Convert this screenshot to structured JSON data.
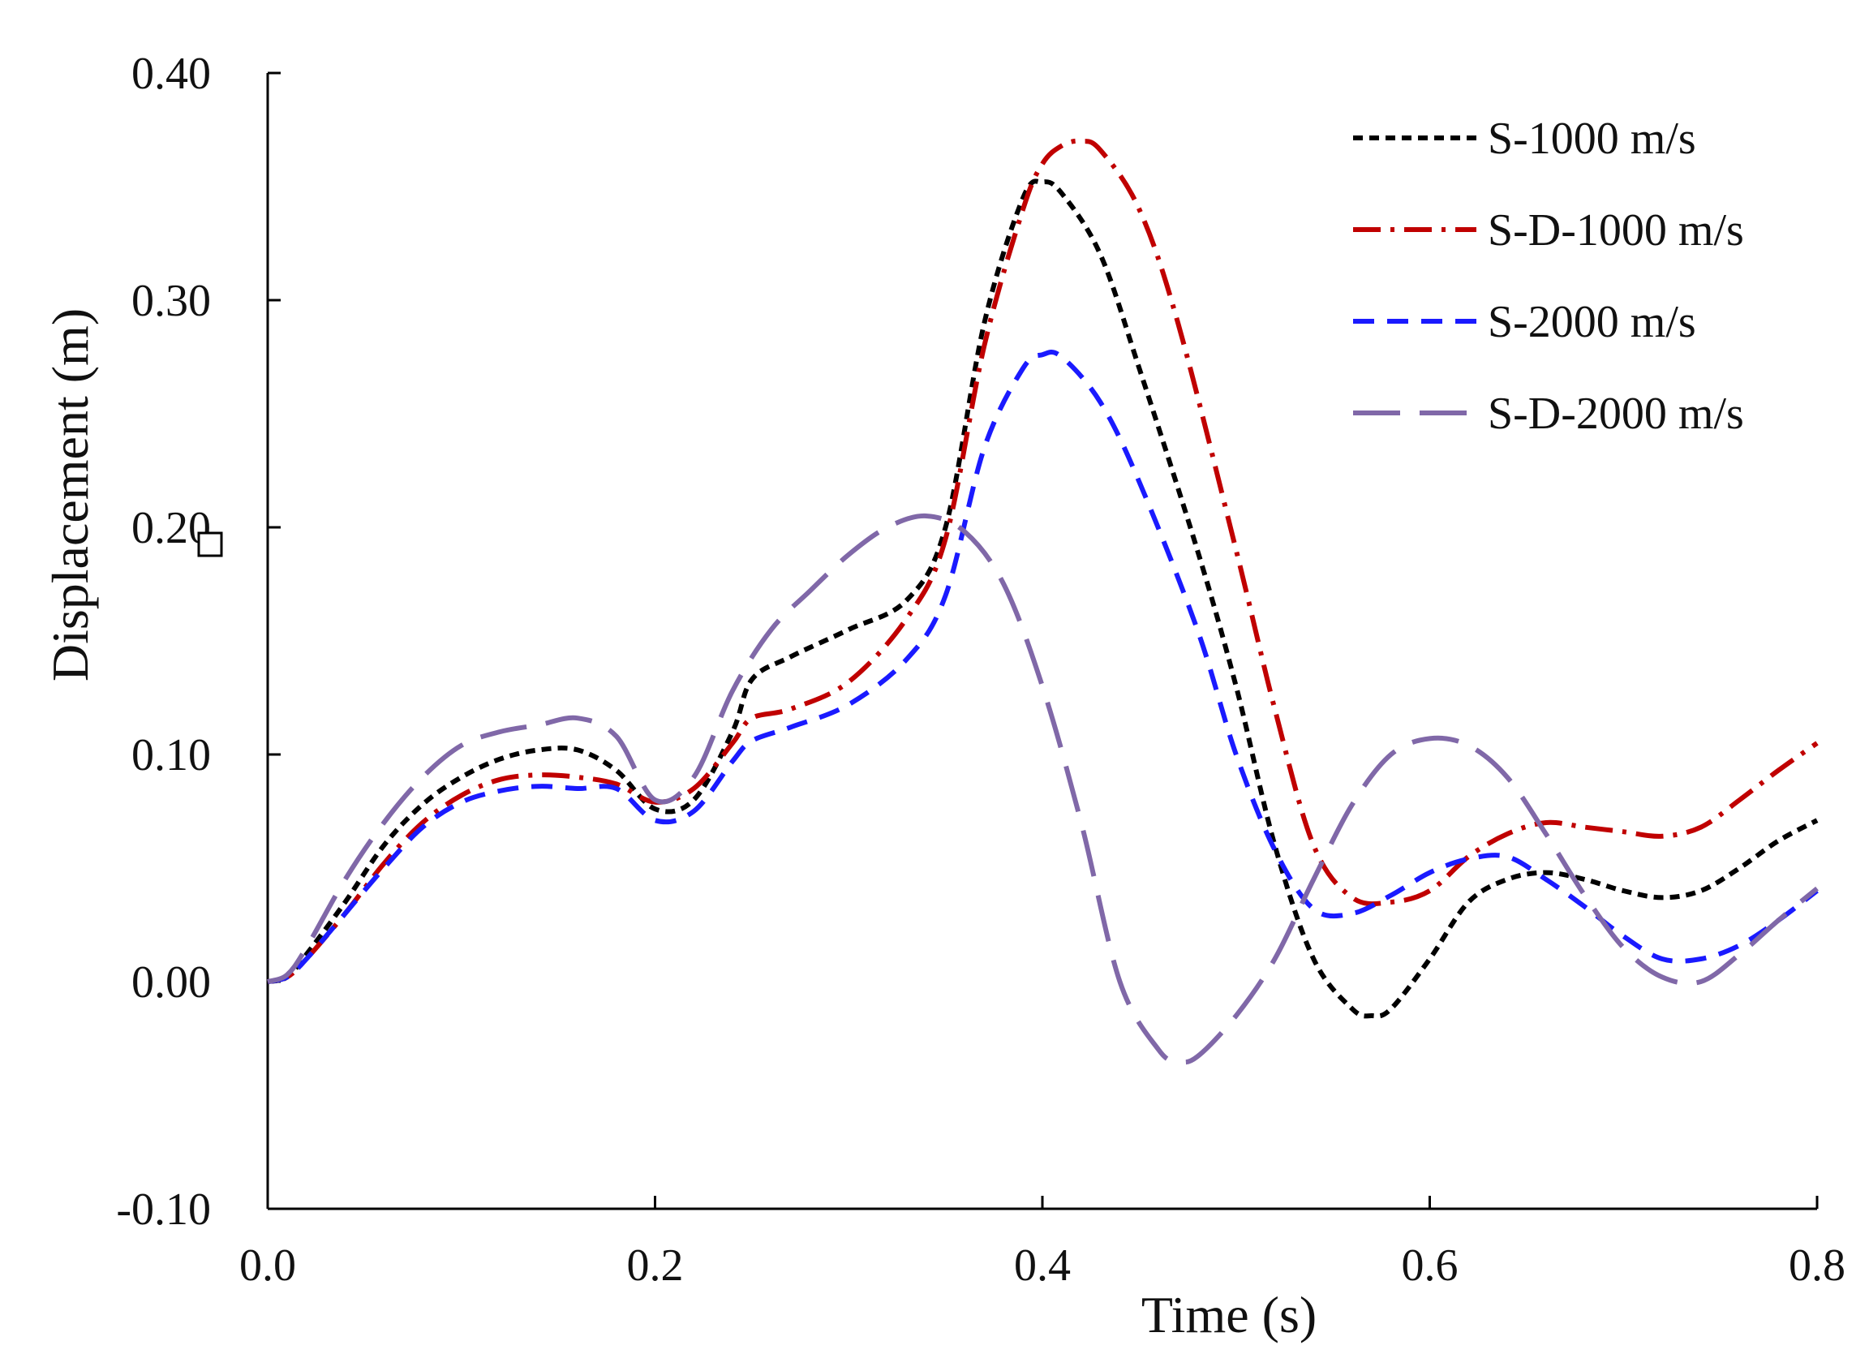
{
  "chart_data": {
    "type": "line",
    "title": "",
    "xlabel": "Time (s)",
    "ylabel": "Displacement (m)",
    "xlim": [
      0.0,
      0.8
    ],
    "ylim": [
      -0.1,
      0.4
    ],
    "xticks": [
      0.0,
      0.2,
      0.4,
      0.6,
      0.8
    ],
    "xtick_labels": [
      "0.0",
      "0.2",
      "0.4",
      "0.6",
      "0.8"
    ],
    "yticks": [
      -0.1,
      0.0,
      0.1,
      0.2,
      0.3,
      0.4
    ],
    "ytick_labels": [
      "-0.10",
      "0.00",
      "0.10",
      "0.20",
      "0.30",
      "0.40"
    ],
    "grid": false,
    "legend_position": "top-right",
    "series": [
      {
        "name": "S-1000 m/s",
        "color": "#000000",
        "dash": "short-dash",
        "x": [
          0.0,
          0.01,
          0.02,
          0.04,
          0.06,
          0.08,
          0.1,
          0.12,
          0.14,
          0.16,
          0.18,
          0.2,
          0.22,
          0.24,
          0.25,
          0.27,
          0.3,
          0.33,
          0.35,
          0.37,
          0.39,
          0.4,
          0.41,
          0.43,
          0.45,
          0.48,
          0.5,
          0.52,
          0.54,
          0.56,
          0.57,
          0.58,
          0.6,
          0.62,
          0.64,
          0.66,
          0.68,
          0.7,
          0.72,
          0.74,
          0.76,
          0.78,
          0.8
        ],
        "y": [
          0.0,
          0.002,
          0.012,
          0.035,
          0.06,
          0.078,
          0.09,
          0.098,
          0.102,
          0.102,
          0.093,
          0.076,
          0.08,
          0.11,
          0.133,
          0.143,
          0.155,
          0.168,
          0.2,
          0.29,
          0.345,
          0.352,
          0.347,
          0.32,
          0.27,
          0.19,
          0.13,
          0.06,
          0.01,
          -0.012,
          -0.015,
          -0.012,
          0.01,
          0.035,
          0.045,
          0.048,
          0.045,
          0.04,
          0.037,
          0.04,
          0.05,
          0.062,
          0.071
        ]
      },
      {
        "name": "S-D-1000 m/s",
        "color": "#c00000",
        "dash": "dash-dot",
        "x": [
          0.0,
          0.01,
          0.02,
          0.04,
          0.06,
          0.08,
          0.1,
          0.12,
          0.14,
          0.16,
          0.18,
          0.2,
          0.22,
          0.24,
          0.25,
          0.27,
          0.3,
          0.33,
          0.35,
          0.37,
          0.39,
          0.4,
          0.41,
          0.42,
          0.43,
          0.45,
          0.47,
          0.5,
          0.52,
          0.54,
          0.56,
          0.58,
          0.6,
          0.62,
          0.64,
          0.66,
          0.68,
          0.7,
          0.72,
          0.74,
          0.76,
          0.78,
          0.8
        ],
        "y": [
          0.0,
          0.002,
          0.01,
          0.03,
          0.052,
          0.07,
          0.082,
          0.089,
          0.091,
          0.09,
          0.087,
          0.079,
          0.085,
          0.105,
          0.116,
          0.12,
          0.132,
          0.16,
          0.195,
          0.28,
          0.34,
          0.36,
          0.368,
          0.37,
          0.366,
          0.34,
          0.29,
          0.19,
          0.12,
          0.06,
          0.037,
          0.035,
          0.04,
          0.055,
          0.065,
          0.07,
          0.068,
          0.066,
          0.064,
          0.068,
          0.08,
          0.093,
          0.105
        ]
      },
      {
        "name": "S-2000 m/s",
        "color": "#1a1aff",
        "dash": "dash",
        "x": [
          0.0,
          0.01,
          0.02,
          0.04,
          0.06,
          0.08,
          0.1,
          0.12,
          0.14,
          0.16,
          0.18,
          0.2,
          0.22,
          0.24,
          0.25,
          0.27,
          0.3,
          0.33,
          0.35,
          0.37,
          0.39,
          0.4,
          0.41,
          0.43,
          0.45,
          0.48,
          0.5,
          0.52,
          0.54,
          0.56,
          0.58,
          0.6,
          0.62,
          0.64,
          0.66,
          0.68,
          0.7,
          0.72,
          0.74,
          0.76,
          0.78,
          0.8
        ],
        "y": [
          0.0,
          0.002,
          0.01,
          0.03,
          0.05,
          0.068,
          0.079,
          0.084,
          0.086,
          0.085,
          0.085,
          0.071,
          0.075,
          0.097,
          0.106,
          0.112,
          0.122,
          0.142,
          0.17,
          0.235,
          0.27,
          0.276,
          0.275,
          0.255,
          0.22,
          0.155,
          0.1,
          0.058,
          0.032,
          0.03,
          0.038,
          0.048,
          0.054,
          0.055,
          0.045,
          0.033,
          0.02,
          0.01,
          0.01,
          0.016,
          0.027,
          0.04
        ]
      },
      {
        "name": "S-D-2000 m/s",
        "color": "#8068a8",
        "dash": "long-dash",
        "x": [
          0.0,
          0.01,
          0.02,
          0.04,
          0.06,
          0.08,
          0.1,
          0.12,
          0.14,
          0.16,
          0.18,
          0.2,
          0.22,
          0.24,
          0.26,
          0.28,
          0.3,
          0.32,
          0.34,
          0.36,
          0.38,
          0.4,
          0.42,
          0.44,
          0.46,
          0.47,
          0.48,
          0.5,
          0.52,
          0.54,
          0.56,
          0.58,
          0.6,
          0.62,
          0.64,
          0.66,
          0.68,
          0.7,
          0.72,
          0.74,
          0.76,
          0.78,
          0.8
        ],
        "y": [
          0.0,
          0.003,
          0.015,
          0.045,
          0.07,
          0.09,
          0.104,
          0.11,
          0.113,
          0.116,
          0.108,
          0.08,
          0.09,
          0.128,
          0.155,
          0.172,
          0.188,
          0.2,
          0.205,
          0.198,
          0.175,
          0.13,
          0.07,
          0.0,
          -0.03,
          -0.035,
          -0.033,
          -0.015,
          0.01,
          0.045,
          0.078,
          0.1,
          0.107,
          0.104,
          0.09,
          0.065,
          0.038,
          0.015,
          0.002,
          0.0,
          0.012,
          0.027,
          0.041
        ]
      }
    ]
  }
}
